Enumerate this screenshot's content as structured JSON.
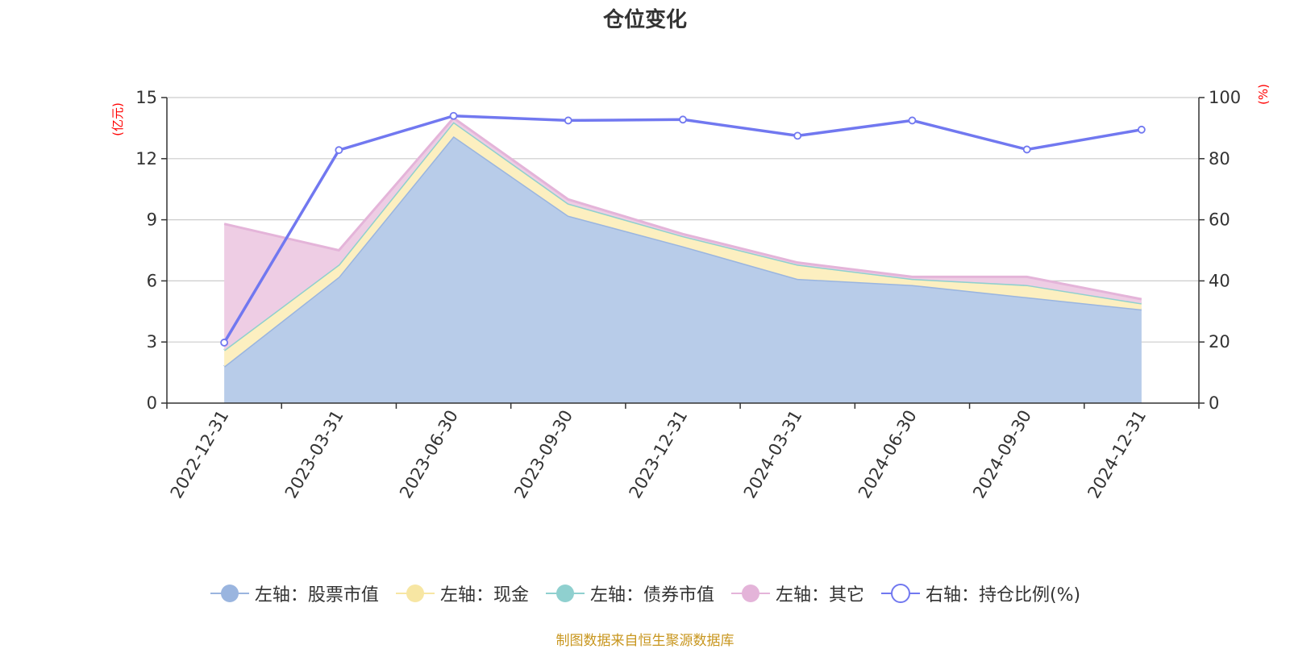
{
  "chart_data": {
    "type": "area",
    "title": "仓位变化",
    "categories": [
      "2022-12-31",
      "2023-03-31",
      "2023-06-30",
      "2023-09-30",
      "2023-12-31",
      "2024-03-31",
      "2024-06-30",
      "2024-09-30",
      "2024-12-31"
    ],
    "left_axis": {
      "unit": "(亿元)",
      "ylim": [
        0,
        15
      ],
      "ticks": [
        0,
        3,
        6,
        9,
        12,
        15
      ]
    },
    "right_axis": {
      "unit": "(%)",
      "ylim": [
        0,
        100
      ],
      "ticks": [
        0,
        20,
        40,
        60,
        80,
        100
      ]
    },
    "series": [
      {
        "name": "左轴：股票市值",
        "axis": "left",
        "stacked": true,
        "color": "#9ab5df",
        "fill": "#b8cce9",
        "values": [
          1.8,
          6.2,
          13.1,
          9.2,
          7.7,
          6.1,
          5.8,
          5.2,
          4.6
        ]
      },
      {
        "name": "左轴：现金",
        "axis": "left",
        "stacked": true,
        "color": "#f7e6a3",
        "fill": "#fcefc0",
        "values": [
          0.8,
          0.6,
          0.7,
          0.6,
          0.5,
          0.7,
          0.3,
          0.6,
          0.3
        ]
      },
      {
        "name": "左轴：债券市值",
        "axis": "left",
        "stacked": true,
        "color": "#8fd0cf",
        "fill": "#b8e3e2",
        "values": [
          0,
          0,
          0,
          0,
          0,
          0,
          0,
          0,
          0
        ]
      },
      {
        "name": "左轴：其它",
        "axis": "left",
        "stacked": true,
        "color": "#e4b4d9",
        "fill": "#eecde4",
        "values": [
          6.2,
          0.7,
          0.2,
          0.2,
          0.1,
          0.1,
          0.1,
          0.4,
          0.2
        ]
      },
      {
        "name": "右轴：持仓比例(%)",
        "axis": "right",
        "stacked": false,
        "color": "#7178f0",
        "values": [
          19.8,
          82.8,
          94.0,
          92.5,
          92.8,
          87.5,
          92.5,
          83.0,
          89.5
        ]
      }
    ],
    "legend_position": "bottom",
    "grid": true
  },
  "source_note": "制图数据来自恒生聚源数据库"
}
